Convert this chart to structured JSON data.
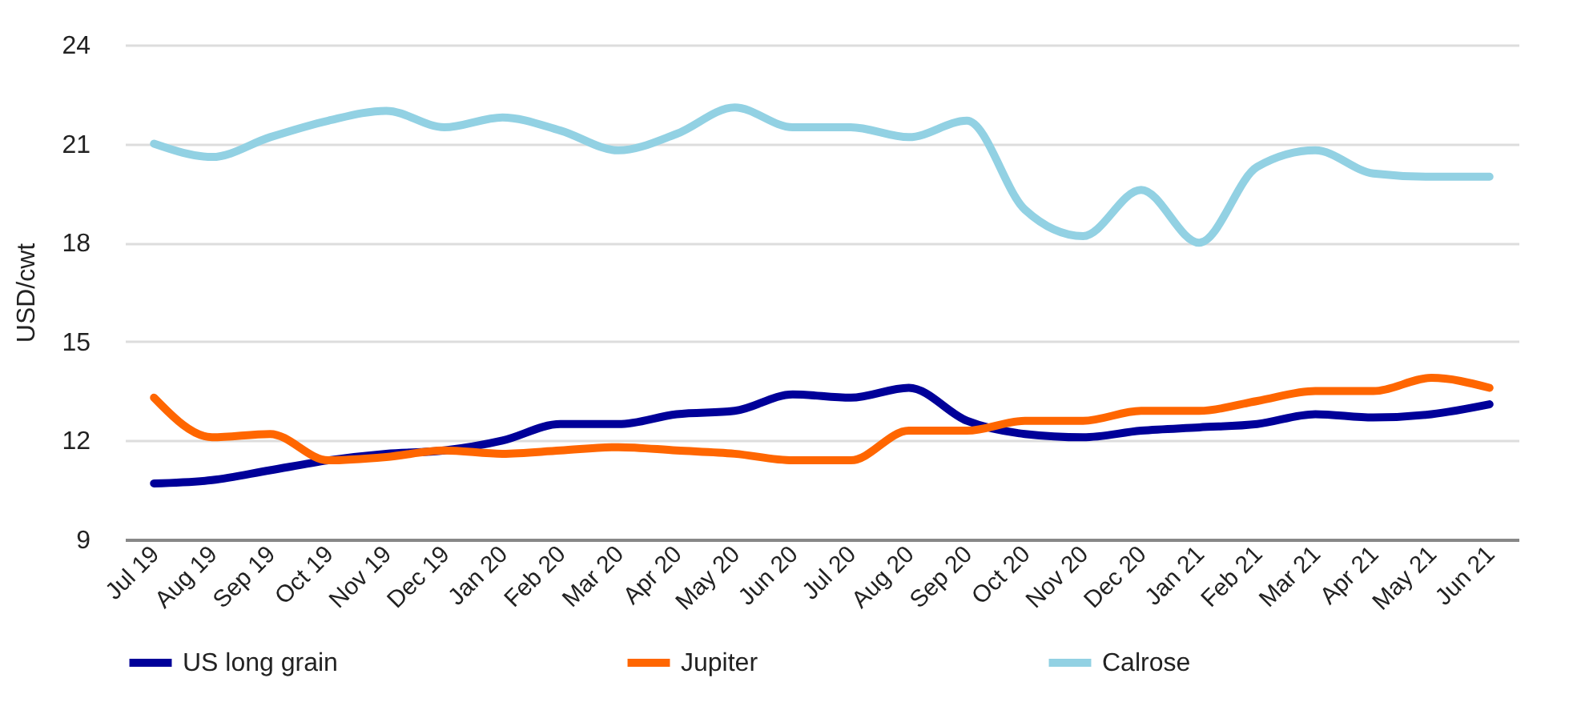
{
  "chart_data": {
    "type": "line",
    "ylabel": "USD/cwt",
    "categories": [
      "Jul 19",
      "Aug 19",
      "Sep 19",
      "Oct 19",
      "Nov 19",
      "Dec 19",
      "Jan 20",
      "Feb 20",
      "Mar 20",
      "Apr 20",
      "May 20",
      "Jun 20",
      "Jul 20",
      "Aug 20",
      "Sep 20",
      "Oct 20",
      "Nov 20",
      "Dec 20",
      "Jan 21",
      "Feb 21",
      "Mar 21",
      "Apr 21",
      "May 21",
      "Jun 21"
    ],
    "series": [
      {
        "name": "US long grain",
        "color": "#000099",
        "values": [
          10.7,
          10.8,
          11.1,
          11.4,
          11.6,
          11.7,
          12.0,
          12.5,
          12.5,
          12.8,
          12.9,
          13.4,
          13.3,
          13.6,
          12.6,
          12.2,
          12.1,
          12.3,
          12.4,
          12.5,
          12.8,
          12.7,
          12.8,
          13.1
        ]
      },
      {
        "name": "Jupiter",
        "color": "#ff6600",
        "values": [
          13.3,
          12.1,
          12.2,
          11.4,
          11.5,
          11.7,
          11.6,
          11.7,
          11.8,
          11.7,
          11.6,
          11.4,
          11.4,
          12.3,
          12.3,
          12.6,
          12.6,
          12.9,
          12.9,
          13.2,
          13.5,
          13.5,
          13.9,
          13.6
        ]
      },
      {
        "name": "Calrose",
        "color": "#92d1e3",
        "values": [
          21.0,
          20.6,
          21.2,
          21.7,
          22.0,
          21.5,
          21.8,
          21.4,
          20.8,
          21.3,
          22.1,
          21.5,
          21.5,
          21.2,
          21.7,
          19.0,
          18.2,
          19.6,
          18.0,
          20.3,
          20.8,
          20.1,
          20.0,
          20.0
        ]
      }
    ],
    "ylim": [
      9,
      24
    ],
    "yticks": [
      9,
      12,
      15,
      18,
      21,
      24
    ],
    "grid": "y",
    "legend": "bottom",
    "marker": "none",
    "line_style": "solid"
  }
}
